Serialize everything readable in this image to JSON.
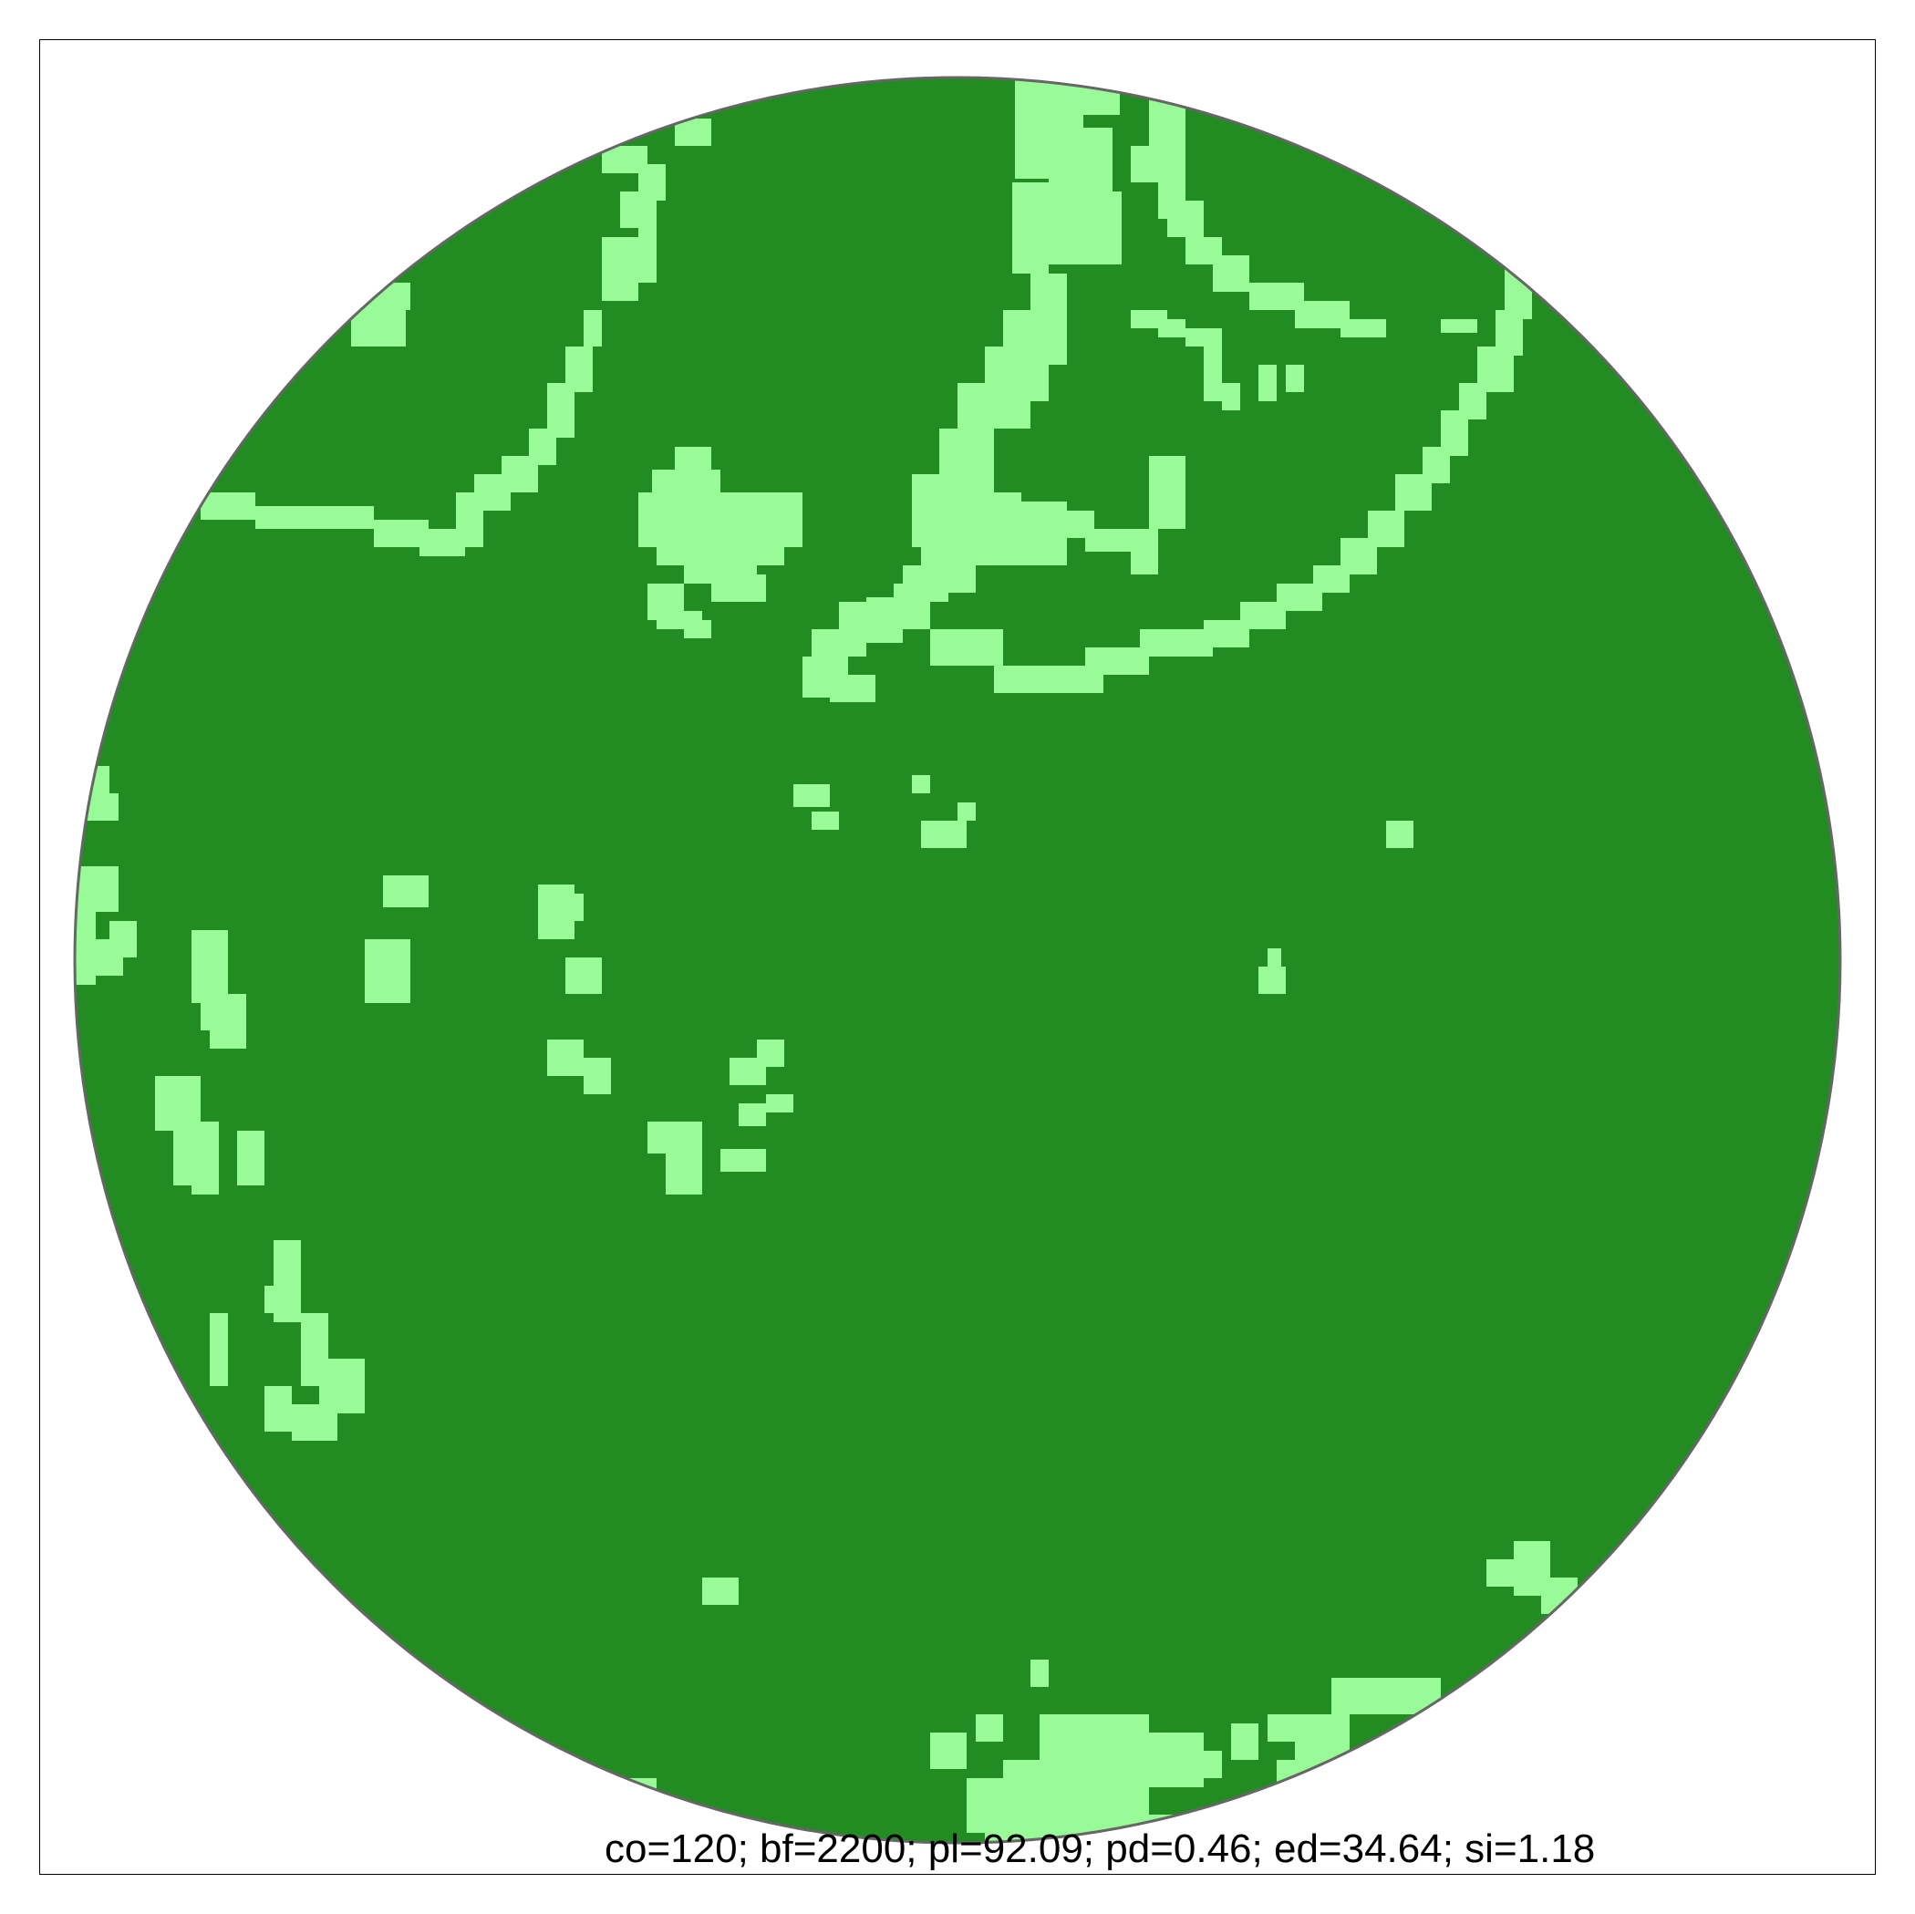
{
  "map": {
    "caption": "co=120; bf=2200; pl=92.09; pd=0.46; ed=34.64; si=1.18",
    "colors": {
      "background": "#ffffff",
      "frame": "#000000",
      "buffer_outline": "#666666",
      "forest": "#228b22",
      "non_forest": "#98fb98"
    },
    "classes": [
      {
        "name": "forest",
        "color": "#228b22"
      },
      {
        "name": "non-forest",
        "color": "#98fb98"
      }
    ],
    "metrics": {
      "co": 120,
      "bf": 2200,
      "pl": 92.09,
      "pd": 0.46,
      "ed": 34.64,
      "si": 1.18
    }
  }
}
